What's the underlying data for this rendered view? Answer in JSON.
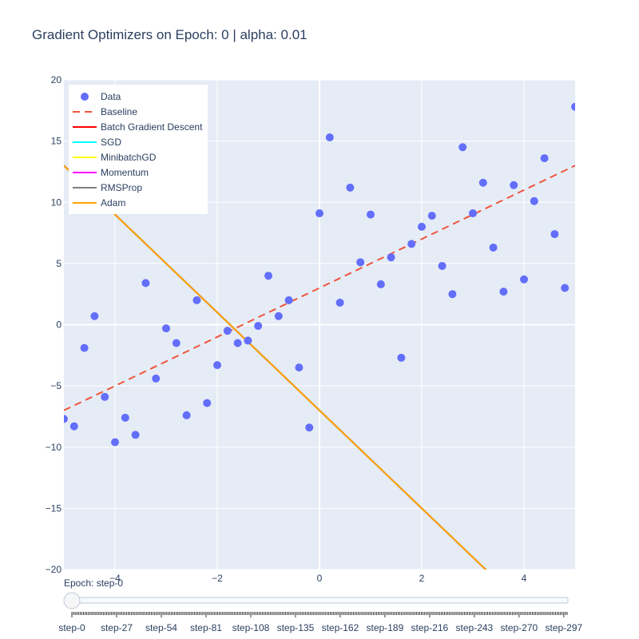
{
  "chart_title": "Gradient Optimizers on Epoch: 0 | alpha: 0.01",
  "chart_data": {
    "type": "scatter",
    "title": "Gradient Optimizers on Epoch: 0 | alpha: 0.01",
    "xlim": [
      -5,
      5
    ],
    "ylim": [
      -20,
      20
    ],
    "x_ticks": [
      -4,
      -2,
      0,
      2,
      4
    ],
    "y_ticks": [
      -20,
      -15,
      -10,
      -5,
      0,
      5,
      10,
      15,
      20
    ],
    "grid": true,
    "legend_position": "top-left",
    "series": [
      {
        "name": "Data",
        "kind": "markers",
        "color": "#636efa",
        "x": [
          -5.0,
          -4.8,
          -4.6,
          -4.4,
          -4.2,
          -4.0,
          -3.8,
          -3.6,
          -3.4,
          -3.2,
          -3.0,
          -2.8,
          -2.6,
          -2.4,
          -2.2,
          -2.0,
          -1.8,
          -1.6,
          -1.4,
          -1.2,
          -1.0,
          -0.8,
          -0.6,
          -0.4,
          -0.2,
          0.0,
          0.2,
          0.4,
          0.6,
          0.8,
          1.0,
          1.2,
          1.4,
          1.6,
          1.8,
          2.0,
          2.2,
          2.4,
          2.6,
          2.8,
          3.0,
          3.2,
          3.4,
          3.6,
          3.8,
          4.0,
          4.2,
          4.4,
          4.6,
          4.8,
          5.0
        ],
        "y": [
          -7.7,
          -8.3,
          -1.9,
          0.7,
          -5.9,
          -9.6,
          -7.6,
          -9.0,
          3.4,
          -4.4,
          -0.3,
          -1.5,
          -7.4,
          2.0,
          -6.4,
          -3.3,
          -0.5,
          -1.5,
          -1.3,
          -0.1,
          4.0,
          0.7,
          2.0,
          -3.5,
          -8.4,
          9.1,
          15.3,
          1.8,
          11.2,
          5.1,
          9.0,
          3.3,
          5.5,
          -2.7,
          6.6,
          8.0,
          8.9,
          4.8,
          2.5,
          14.5,
          9.1,
          11.6,
          6.3,
          2.7,
          11.4,
          3.7,
          10.1,
          13.6,
          7.4,
          3.0,
          17.8
        ]
      },
      {
        "name": "Baseline",
        "kind": "dashed-line",
        "color": "#ef553b",
        "x": [
          -5,
          5
        ],
        "y": [
          -7,
          13
        ]
      },
      {
        "name": "Batch Gradient Descent",
        "kind": "line",
        "color": "#ff0000",
        "x": [
          -5,
          5
        ],
        "y": [
          13,
          -27
        ]
      },
      {
        "name": "SGD",
        "kind": "line",
        "color": "#00ffff",
        "x": [
          -5,
          5
        ],
        "y": [
          13,
          -27
        ]
      },
      {
        "name": "MinibatchGD",
        "kind": "line",
        "color": "#ffff00",
        "x": [
          -5,
          5
        ],
        "y": [
          13,
          -27
        ]
      },
      {
        "name": "Momentum",
        "kind": "line",
        "color": "#ff00ff",
        "x": [
          -5,
          5
        ],
        "y": [
          13,
          -27
        ]
      },
      {
        "name": "RMSProp",
        "kind": "line",
        "color": "#808080",
        "x": [
          -5,
          5
        ],
        "y": [
          13,
          -27
        ]
      },
      {
        "name": "Adam",
        "kind": "line",
        "color": "#ffa500",
        "x": [
          -5,
          5
        ],
        "y": [
          13,
          -27
        ]
      }
    ]
  },
  "slider": {
    "current_label": "Epoch: step-0",
    "steps": [
      "step-0",
      "step-27",
      "step-54",
      "step-81",
      "step-108",
      "step-135",
      "step-162",
      "step-189",
      "step-216",
      "step-243",
      "step-270",
      "step-297"
    ],
    "step_count": 300,
    "value": 0
  },
  "colors": {
    "plot_background": "#e5ecf6",
    "grid": "#ffffff",
    "text": "#2a3f5f"
  }
}
